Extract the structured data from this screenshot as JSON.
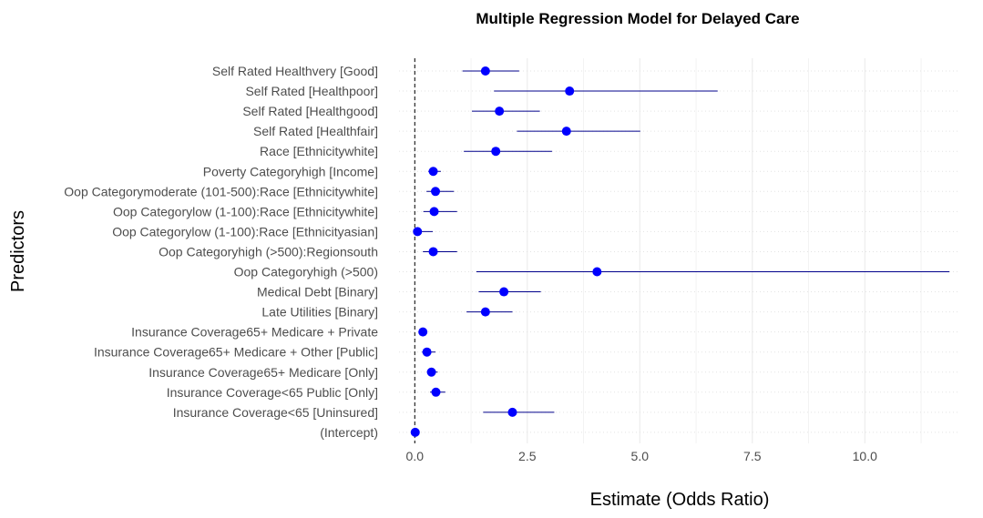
{
  "chart_data": {
    "type": "scatter",
    "subtype": "forest-plot",
    "title": "Multiple Regression Model for Delayed Care",
    "xlabel": "Estimate (Odds Ratio)",
    "ylabel": "Predictors",
    "xlim": [
      -0.35,
      12.1
    ],
    "xticks": [
      0,
      2.5,
      5,
      7.5,
      10
    ],
    "xtick_labels": [
      "0.0",
      "2.5",
      "5.0",
      "7.5",
      "10.0"
    ],
    "reference_line": 0,
    "grid": true,
    "legend": "none",
    "colors": {
      "point": "#0000ff",
      "interval": "#00008b",
      "grid": "#ebebeb",
      "text": "#4d4d4d"
    },
    "predictors": [
      {
        "label": "Self Rated Healthvery [Good]",
        "estimate": 1.57,
        "lower": 1.06,
        "upper": 2.32
      },
      {
        "label": "Self Rated [Healthpoor]",
        "estimate": 3.44,
        "lower": 1.76,
        "upper": 6.73
      },
      {
        "label": "Self Rated [Healthgood]",
        "estimate": 1.88,
        "lower": 1.27,
        "upper": 2.78
      },
      {
        "label": "Self Rated [Healthfair]",
        "estimate": 3.37,
        "lower": 2.27,
        "upper": 5.01
      },
      {
        "label": "Race [Ethnicitywhite]",
        "estimate": 1.8,
        "lower": 1.09,
        "upper": 3.05
      },
      {
        "label": "Poverty Categoryhigh [Income]",
        "estimate": 0.41,
        "lower": 0.3,
        "upper": 0.58
      },
      {
        "label": "Oop Categorymoderate (101-500):Race [Ethnicitywhite]",
        "estimate": 0.46,
        "lower": 0.26,
        "upper": 0.87
      },
      {
        "label": "Oop Categorylow (1-100):Race [Ethnicitywhite]",
        "estimate": 0.43,
        "lower": 0.19,
        "upper": 0.94
      },
      {
        "label": "Oop Categorylow (1-100):Race [Ethnicityasian]",
        "estimate": 0.06,
        "lower": 0.0,
        "upper": 0.4
      },
      {
        "label": "Oop Categoryhigh (>500):Regionsouth",
        "estimate": 0.41,
        "lower": 0.18,
        "upper": 0.94
      },
      {
        "label": "Oop Categoryhigh (>500)",
        "estimate": 4.05,
        "lower": 1.37,
        "upper": 11.88
      },
      {
        "label": "Medical Debt [Binary]",
        "estimate": 1.98,
        "lower": 1.42,
        "upper": 2.8
      },
      {
        "label": "Late Utilities [Binary]",
        "estimate": 1.57,
        "lower": 1.15,
        "upper": 2.17
      },
      {
        "label": "Insurance Coverage65+ Medicare + Private",
        "estimate": 0.18,
        "lower": 0.12,
        "upper": 0.27
      },
      {
        "label": "Insurance Coverage65+ Medicare + Other [Public]",
        "estimate": 0.27,
        "lower": 0.16,
        "upper": 0.46
      },
      {
        "label": "Insurance Coverage65+ Medicare [Only]",
        "estimate": 0.37,
        "lower": 0.27,
        "upper": 0.51
      },
      {
        "label": "Insurance Coverage<65 Public [Only]",
        "estimate": 0.47,
        "lower": 0.34,
        "upper": 0.68
      },
      {
        "label": "Insurance Coverage<65 [Uninsured]",
        "estimate": 2.17,
        "lower": 1.52,
        "upper": 3.1
      },
      {
        "label": "(Intercept)",
        "estimate": 0.01,
        "lower": 0.0,
        "upper": 0.02
      }
    ]
  }
}
